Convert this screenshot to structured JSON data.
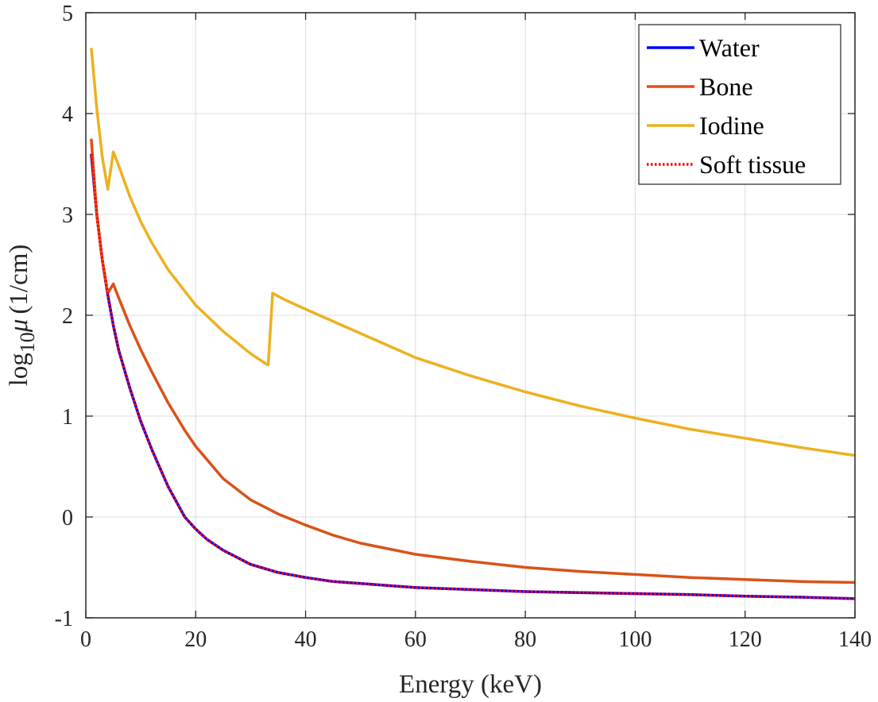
{
  "chart_data": {
    "type": "line",
    "xlabel": "Energy (keV)",
    "ylabel": {
      "prefix": "log",
      "subscript": "10",
      "symbol": "μ",
      "unit": "(1/cm)"
    },
    "xlim": [
      0,
      140
    ],
    "ylim": [
      -1,
      5
    ],
    "x_ticks": [
      0,
      20,
      40,
      60,
      80,
      100,
      120,
      140
    ],
    "y_ticks": [
      -1,
      0,
      1,
      2,
      3,
      4,
      5
    ],
    "grid": true,
    "legend_position": "top-right",
    "series": [
      {
        "name": "Water",
        "color": "#0000ff",
        "style": "solid",
        "x": [
          1,
          2,
          3,
          4,
          5,
          6,
          8,
          10,
          12,
          15,
          18,
          20,
          22,
          25,
          30,
          35,
          40,
          45,
          50,
          60,
          70,
          80,
          90,
          100,
          110,
          120,
          130,
          140
        ],
        "y": [
          3.6,
          3.0,
          2.55,
          2.2,
          1.9,
          1.65,
          1.28,
          0.95,
          0.67,
          0.3,
          0.0,
          -0.12,
          -0.22,
          -0.33,
          -0.47,
          -0.55,
          -0.6,
          -0.64,
          -0.66,
          -0.7,
          -0.72,
          -0.74,
          -0.75,
          -0.76,
          -0.77,
          -0.785,
          -0.795,
          -0.81
        ]
      },
      {
        "name": "Bone",
        "color": "#d95319",
        "style": "solid",
        "x": [
          1,
          2,
          3,
          4,
          5,
          6,
          8,
          10,
          12,
          15,
          18,
          20,
          25,
          30,
          35,
          40,
          45,
          50,
          60,
          70,
          80,
          90,
          100,
          110,
          120,
          130,
          140
        ],
        "y": [
          3.75,
          3.0,
          2.55,
          2.22,
          2.31,
          2.17,
          1.9,
          1.66,
          1.44,
          1.13,
          0.86,
          0.7,
          0.38,
          0.17,
          0.03,
          -0.08,
          -0.18,
          -0.26,
          -0.37,
          -0.44,
          -0.5,
          -0.54,
          -0.57,
          -0.6,
          -0.62,
          -0.64,
          -0.65
        ]
      },
      {
        "name": "Iodine",
        "color": "#edb120",
        "style": "solid",
        "x": [
          1,
          2,
          3,
          4,
          5,
          6,
          8,
          10,
          12,
          15,
          20,
          25,
          30,
          33,
          33.2,
          34,
          36,
          40,
          50,
          60,
          70,
          80,
          90,
          100,
          110,
          120,
          130,
          140
        ],
        "y": [
          4.65,
          4.05,
          3.57,
          3.25,
          3.62,
          3.48,
          3.18,
          2.93,
          2.72,
          2.45,
          2.1,
          1.84,
          1.62,
          1.51,
          1.51,
          2.22,
          2.16,
          2.06,
          1.82,
          1.58,
          1.4,
          1.24,
          1.1,
          0.98,
          0.87,
          0.78,
          0.69,
          0.61
        ]
      },
      {
        "name": "Soft tissue",
        "color": "#ff0000",
        "style": "dotted",
        "x": [
          1,
          2,
          3,
          4,
          5,
          6,
          8,
          10,
          12,
          15,
          18,
          20,
          22,
          25,
          30,
          35,
          40,
          45,
          50,
          60,
          70,
          80,
          90,
          100,
          110,
          120,
          130,
          140
        ],
        "y": [
          3.6,
          3.0,
          2.55,
          2.2,
          1.9,
          1.65,
          1.28,
          0.95,
          0.67,
          0.3,
          0.0,
          -0.12,
          -0.22,
          -0.33,
          -0.47,
          -0.55,
          -0.6,
          -0.64,
          -0.66,
          -0.7,
          -0.72,
          -0.74,
          -0.75,
          -0.76,
          -0.77,
          -0.785,
          -0.795,
          -0.81
        ]
      }
    ]
  }
}
